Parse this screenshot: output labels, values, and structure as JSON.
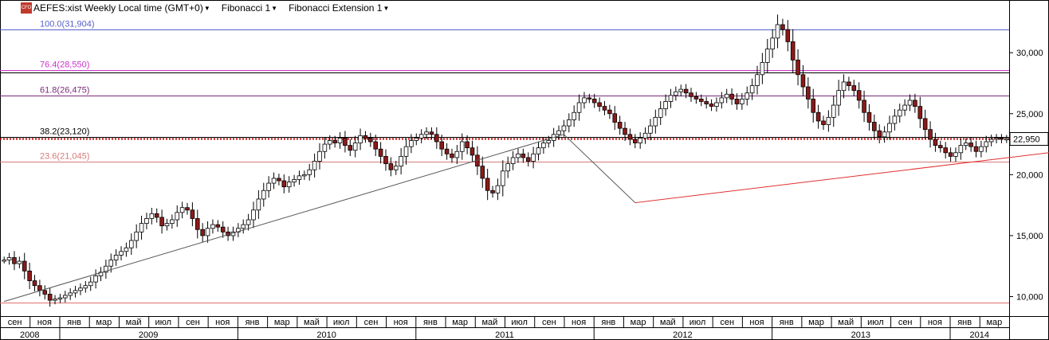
{
  "header": {
    "symbol_label": "AEFES:xist Weekly Local time (GMT+0)",
    "tool1": "Fibonacci 1",
    "tool2": "Fibonacci Extension 1",
    "badge": "CFD"
  },
  "chart_data": {
    "type": "candlestick",
    "ylim": [
      8400,
      33800
    ],
    "y_ticks": [
      10000,
      15000,
      20000,
      25000,
      30000
    ],
    "y_tick_labels": [
      "10,000",
      "15,000",
      "20,000",
      "25,000",
      "30,000"
    ],
    "last_price": 22950,
    "last_price_label": "22,950",
    "month_labels": [
      "сен",
      "ноя",
      "янв",
      "мар",
      "май",
      "июл",
      "сен",
      "ноя",
      "янв",
      "мар",
      "май",
      "июл",
      "сен",
      "ноя",
      "янв",
      "мар",
      "май",
      "июл",
      "сен",
      "ноя",
      "янв",
      "мар",
      "май",
      "июл",
      "сен",
      "ноя",
      "янв",
      "мар",
      "май",
      "июл",
      "сен",
      "ноя",
      "янв",
      "мар"
    ],
    "year_labels": [
      "2008",
      "2009",
      "2010",
      "2011",
      "2012",
      "2013",
      "2014"
    ],
    "fib_levels": [
      {
        "label": "100.0(31,904)",
        "value": 31904,
        "color": "#5560c8"
      },
      {
        "label": "76.4(28,550)",
        "value": 28550,
        "color": "#cc33cc"
      },
      {
        "label": "61.8(26,475)",
        "value": 26475,
        "color": "#7a2a7a"
      },
      {
        "label": "38.2(23,120)",
        "value": 23120,
        "color": "#000000"
      },
      {
        "label": "23.6(21,045)",
        "value": 21045,
        "color": "#d47a7a"
      }
    ],
    "horizontal_lines": [
      {
        "value": 28400,
        "color": "#000000"
      },
      {
        "value": 9500,
        "color": "#e07070"
      }
    ],
    "trendlines": [
      {
        "from": [
          0,
          9600
        ],
        "to": [
          110,
          23300
        ],
        "color": "#555555"
      },
      {
        "from": [
          110,
          23300
        ],
        "to": [
          124,
          17700
        ],
        "color": "#555555"
      },
      {
        "from": [
          124,
          17700
        ],
        "to": [
          241,
          23600
        ],
        "color": "#e03030"
      }
    ],
    "weekly_close": [
      13000,
      13200,
      12700,
      12900,
      12100,
      11300,
      10900,
      10500,
      10200,
      9700,
      9800,
      9900,
      10100,
      10300,
      10500,
      10700,
      10900,
      11200,
      11700,
      12000,
      12500,
      13000,
      13400,
      13700,
      14000,
      14600,
      15300,
      16000,
      16400,
      16800,
      16500,
      15800,
      16000,
      16300,
      16900,
      17300,
      17100,
      16400,
      15500,
      15000,
      15600,
      15900,
      15700,
      15300,
      15000,
      15300,
      15600,
      15900,
      16300,
      17100,
      18000,
      18700,
      19300,
      19700,
      19500,
      19000,
      19400,
      19600,
      19900,
      20000,
      20400,
      21100,
      21900,
      22500,
      22800,
      22600,
      23000,
      22400,
      22000,
      22600,
      23200,
      23000,
      22700,
      22100,
      21500,
      20900,
      20400,
      20700,
      21500,
      22300,
      22800,
      23000,
      23300,
      23500,
      23300,
      22700,
      22100,
      21700,
      21400,
      21900,
      22700,
      22200,
      21600,
      20700,
      19700,
      18700,
      18500,
      19100,
      20300,
      20900,
      21400,
      21700,
      21400,
      21100,
      21700,
      22200,
      22600,
      22800,
      23300,
      23600,
      24000,
      24500,
      25100,
      25900,
      26300,
      26200,
      25900,
      25600,
      25300,
      25000,
      24300,
      23800,
      23300,
      22900,
      22600,
      23000,
      23400,
      24000,
      24700,
      25400,
      26000,
      26500,
      26800,
      27000,
      26700,
      26400,
      26200,
      26000,
      25800,
      25600,
      25900,
      26300,
      26600,
      26200,
      25800,
      26200,
      26700,
      27300,
      28200,
      29200,
      30300,
      31200,
      32300,
      31900,
      30900,
      29400,
      28200,
      27200,
      26200,
      25100,
      24400,
      24100,
      24700,
      25700,
      26900,
      27600,
      27300,
      26900,
      26100,
      25100,
      24300,
      23600,
      23100,
      23500,
      24200,
      24800,
      25300,
      25700,
      26100,
      25600,
      24600,
      23700,
      22900,
      22400,
      22200,
      21800,
      21500,
      21800,
      22400,
      22600,
      22300,
      21900,
      22300,
      22700,
      22900,
      23000,
      22900,
      22950
    ]
  }
}
